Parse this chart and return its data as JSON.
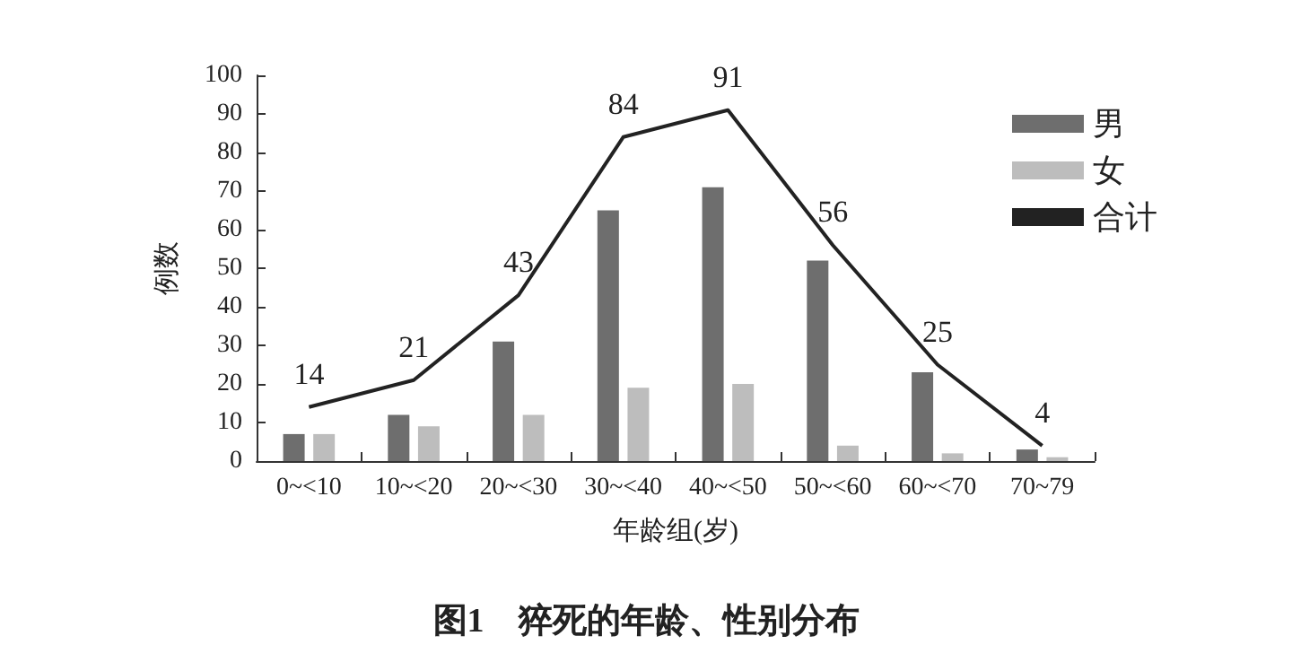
{
  "chart_data": {
    "type": "bar",
    "title": "图1　猝死的年龄、性别分布",
    "xlabel": "年龄组(岁)",
    "ylabel": "例数",
    "categories": [
      "0~<10",
      "10~<20",
      "20~<30",
      "30~<40",
      "40~<50",
      "50~<60",
      "60~<70",
      "70~79"
    ],
    "series": [
      {
        "name": "男",
        "color": "#6e6e6e",
        "values": [
          7,
          12,
          31,
          65,
          71,
          52,
          23,
          3
        ]
      },
      {
        "name": "女",
        "color": "#bdbdbd",
        "values": [
          7,
          9,
          12,
          19,
          20,
          4,
          2,
          1
        ]
      },
      {
        "name": "合计",
        "type": "line",
        "color": "#222222",
        "marker": "none",
        "values": [
          14,
          21,
          43,
          84,
          91,
          56,
          25,
          4
        ],
        "value_labels": [
          "14",
          "21",
          "43",
          "84",
          "91",
          "56",
          "25",
          "4"
        ]
      }
    ],
    "ylim": [
      0,
      100
    ],
    "yticks": [
      0,
      10,
      20,
      30,
      40,
      50,
      60,
      70,
      80,
      90,
      100
    ],
    "grid": false,
    "legend": "top right"
  }
}
